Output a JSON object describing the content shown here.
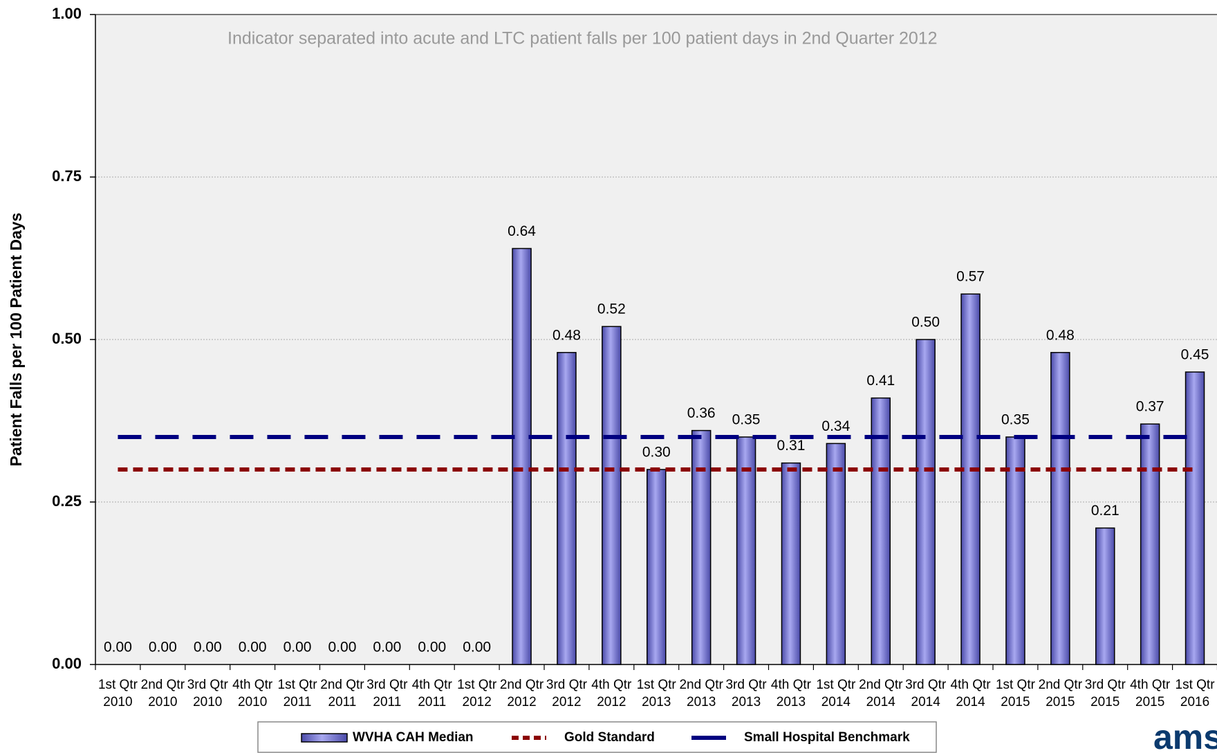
{
  "chart_data": {
    "type": "bar",
    "annotation": "Indicator separated into acute and LTC patient falls per 100 patient days in 2nd Quarter 2012",
    "y_label": "Patient Falls per 100 Patient Days",
    "logo_text": "ams",
    "categories": [
      "1st Qtr 2010",
      "2nd Qtr 2010",
      "3rd Qtr 2010",
      "4th Qtr 2010",
      "1st Qtr 2011",
      "2nd Qtr 2011",
      "3rd Qtr 2011",
      "4th Qtr 2011",
      "1st Qtr 2012",
      "2nd Qtr 2012",
      "3rd Qtr 2012",
      "4th Qtr 2012",
      "1st Qtr 2013",
      "2nd Qtr 2013",
      "3rd Qtr 2013",
      "4th Qtr 2013",
      "1st Qtr 2014",
      "2nd Qtr 2014",
      "3rd Qtr 2014",
      "4th Qtr 2014",
      "1st Qtr 2015",
      "2nd Qtr 2015",
      "3rd Qtr 2015",
      "4th Qtr 2015",
      "1st Qtr 2016"
    ],
    "series": [
      {
        "name": "WVHA CAH Median",
        "type": "bar",
        "color": "#7b7bd6",
        "values": [
          0,
          0,
          0,
          0,
          0,
          0,
          0,
          0,
          0,
          0.64,
          0.48,
          0.52,
          0.3,
          0.36,
          0.35,
          0.31,
          0.34,
          0.41,
          0.5,
          0.57,
          0.35,
          0.48,
          0.21,
          0.37,
          0.45
        ],
        "value_labels": [
          "0.00",
          "0.00",
          "0.00",
          "0.00",
          "0.00",
          "0.00",
          "0.00",
          "0.00",
          "0.00",
          "0.64",
          "0.48",
          "0.52",
          "0.30",
          "0.36",
          "0.35",
          "0.31",
          "0.34",
          "0.41",
          "0.50",
          "0.57",
          "0.35",
          "0.48",
          "0.21",
          "0.37",
          "0.45"
        ]
      },
      {
        "name": "Gold Standard",
        "type": "line",
        "color": "#8b0000",
        "dash": "short",
        "values": [
          0.3,
          0.3,
          0.3,
          0.3,
          0.3,
          0.3,
          0.3,
          0.3,
          0.3,
          0.3,
          0.3,
          0.3,
          0.3,
          0.3,
          0.3,
          0.3,
          0.3,
          0.3,
          0.3,
          0.3,
          0.3,
          0.3,
          0.3,
          0.3,
          0.3
        ]
      },
      {
        "name": "Small Hospital Benchmark",
        "type": "line",
        "color": "#000080",
        "dash": "long",
        "values": [
          0.35,
          0.35,
          0.35,
          0.35,
          0.35,
          0.35,
          0.35,
          0.35,
          0.35,
          0.35,
          0.35,
          0.35,
          0.35,
          0.35,
          0.35,
          0.35,
          0.35,
          0.35,
          0.35,
          0.35,
          0.35,
          0.35,
          0.35,
          0.35,
          0.35
        ]
      }
    ],
    "ylim": [
      0,
      1
    ],
    "yticks": [
      {
        "value": 0,
        "label": "0.00"
      },
      {
        "value": 0.25,
        "label": "0.25"
      },
      {
        "value": 0.5,
        "label": "0.50"
      },
      {
        "value": 0.75,
        "label": "0.75"
      },
      {
        "value": 1,
        "label": "1.00"
      }
    ],
    "grid": true,
    "legend": "bottom"
  }
}
